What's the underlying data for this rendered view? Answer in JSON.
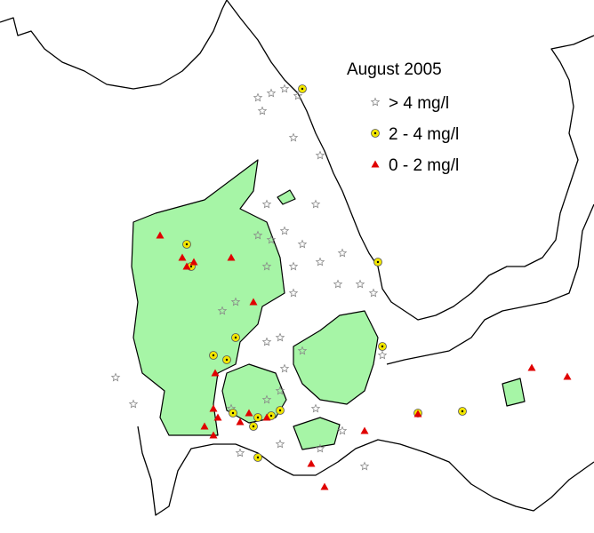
{
  "legend": {
    "title": "August 2005",
    "items": [
      {
        "label": "> 4 mg/l"
      },
      {
        "label": "2 - 4 mg/l"
      },
      {
        "label": "0 - 2 mg/l"
      }
    ]
  }
}
